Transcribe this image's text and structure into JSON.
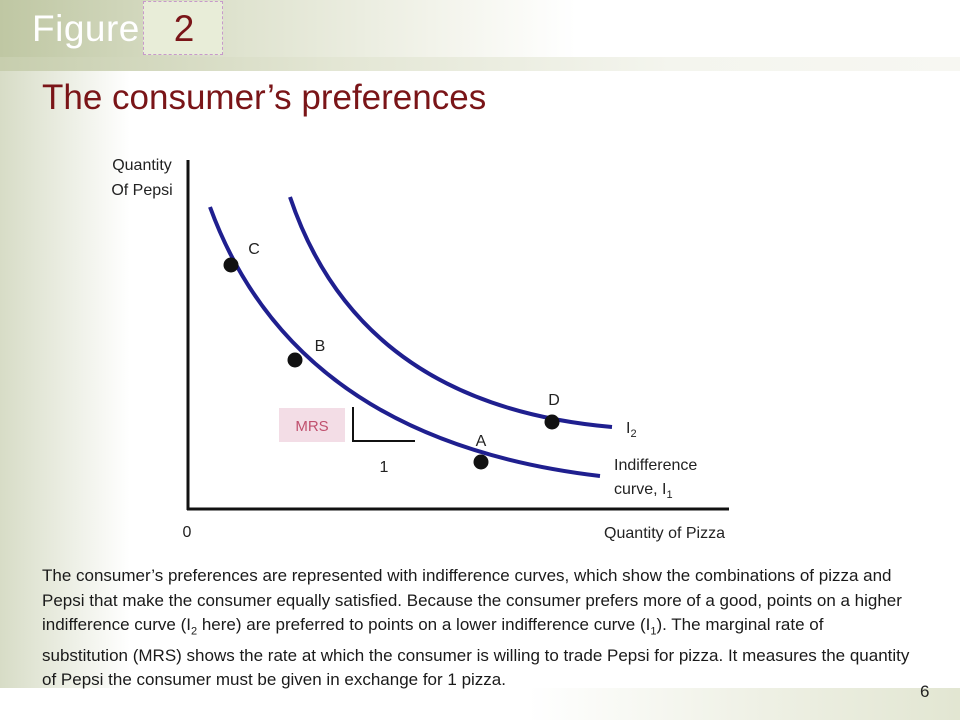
{
  "header": {
    "figure_label": "Figure",
    "figure_number": "2",
    "title": "The consumer’s preferences"
  },
  "diagram": {
    "y_axis_label_line1": "Quantity",
    "y_axis_label_line2": "Of Pepsi",
    "x_axis_label": "Quantity of Pizza",
    "origin_label": "0",
    "points": [
      {
        "id": "C",
        "label": "C"
      },
      {
        "id": "B",
        "label": "B"
      },
      {
        "id": "A",
        "label": "A"
      },
      {
        "id": "D",
        "label": "D"
      }
    ],
    "curve_i2_label": "I",
    "curve_i2_subscript": "2",
    "curve_i1_label_line1": "Indifference",
    "curve_i1_label_line2": "curve, I",
    "curve_i1_subscript": "1",
    "mrs_label": "MRS",
    "run_label": "1",
    "colors": {
      "curve": "#1f1f8f",
      "axis": "#111111",
      "mrs_box": "#f3dde6",
      "mrs_text": "#c0506e",
      "plot_bg": "#ffffff"
    }
  },
  "caption": {
    "part1": "The consumer’s preferences are represented with indifference curves, which show the combinations of pizza and Pepsi that make the consumer equally satisfied. Because the consumer prefers more of a good, points on a higher indifference curve (I",
    "sub1": "2",
    "part2": " here) are preferred to points on a lower indifference curve (I",
    "sub2": "1",
    "part3": "). The marginal rate of substitution (MRS) shows the rate at which the consumer is willing to trade Pepsi for pizza. It measures the quantity of Pepsi the consumer must be given in exchange for 1 pizza."
  },
  "slide_number": "6"
}
